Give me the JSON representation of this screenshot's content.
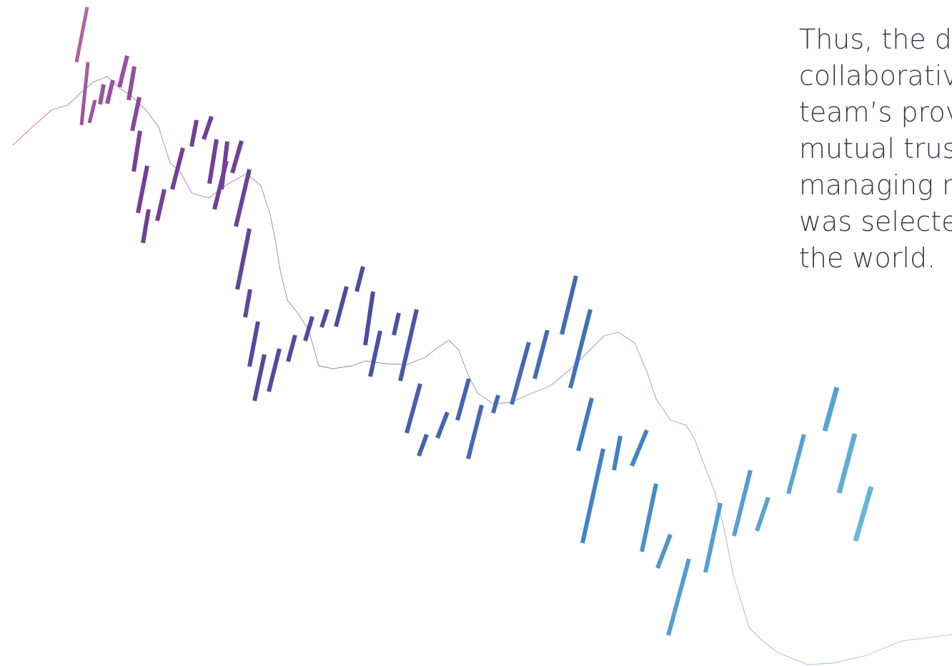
{
  "text_block": {
    "lines": [
      "Thus, the d",
      "collaborativ",
      "team’s prov",
      "mutual trus",
      "managing r",
      "was selecte",
      "the world."
    ]
  },
  "decoration": {
    "gradient_colors": [
      "#d97fb4",
      "#7a3d96",
      "#4b4ea0",
      "#3f86c8",
      "#8ad9e6"
    ],
    "line_color_start": "#c27bb3",
    "line_color_end": "#9ecbe8"
  }
}
